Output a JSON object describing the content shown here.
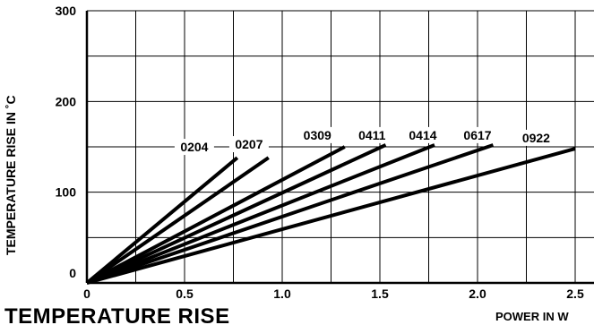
{
  "chart_data": {
    "type": "line",
    "title": "TEMPERATURE RISE",
    "xlabel": "POWER IN W",
    "ylabel": "TEMPERATURE RISE IN ˚C",
    "xlim": [
      0,
      2.5
    ],
    "ylim": [
      0,
      300
    ],
    "x_ticks": [
      0,
      0.5,
      1.0,
      1.5,
      2.0,
      2.5
    ],
    "x_tick_labels": [
      "0",
      "0.5",
      "1.0",
      "1.5",
      "2.0",
      "2.5"
    ],
    "y_ticks": [
      0,
      100,
      200,
      300
    ],
    "y_tick_labels": [
      "0",
      "100",
      "200",
      "300"
    ],
    "grid": true,
    "series": [
      {
        "name": "0204",
        "x": [
          0,
          0.77
        ],
        "y": [
          0,
          138
        ]
      },
      {
        "name": "0207",
        "x": [
          0,
          0.93
        ],
        "y": [
          0,
          138
        ]
      },
      {
        "name": "0309",
        "x": [
          0,
          1.32
        ],
        "y": [
          0,
          150
        ]
      },
      {
        "name": "0411",
        "x": [
          0,
          1.53
        ],
        "y": [
          0,
          152
        ]
      },
      {
        "name": "0414",
        "x": [
          0,
          1.78
        ],
        "y": [
          0,
          152
        ]
      },
      {
        "name": "0617",
        "x": [
          0,
          2.08
        ],
        "y": [
          0,
          152
        ]
      },
      {
        "name": "0922",
        "x": [
          0,
          2.5
        ],
        "y": [
          0,
          148
        ]
      }
    ],
    "label_positions": [
      {
        "x": 0.55,
        "y": 145
      },
      {
        "x": 0.83,
        "y": 148
      },
      {
        "x": 1.18,
        "y": 158
      },
      {
        "x": 1.46,
        "y": 158
      },
      {
        "x": 1.72,
        "y": 158
      },
      {
        "x": 2.0,
        "y": 158
      },
      {
        "x": 2.3,
        "y": 155
      }
    ]
  }
}
